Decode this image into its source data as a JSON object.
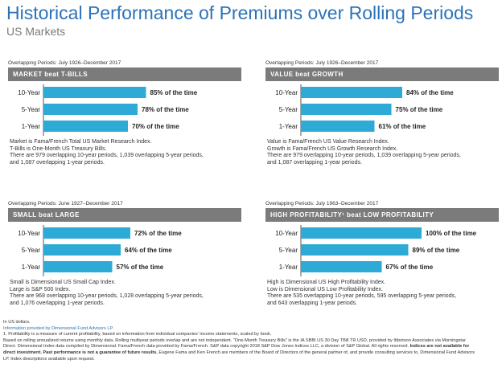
{
  "title": "Historical Performance of Premiums over Rolling Periods",
  "subtitle": "US Markets",
  "colors": {
    "bar": "#2eaad6",
    "header": "#7b7b7b",
    "title": "#2c73b8",
    "axis": "#555555"
  },
  "chart_data": [
    {
      "type": "bar",
      "orientation": "horizontal",
      "title": "MARKET beat T-BILLS",
      "period": "Overlapping Periods: July 1926–December 2017",
      "categories": [
        "10-Year",
        "5-Year",
        "1-Year"
      ],
      "values": [
        85,
        78,
        70
      ],
      "value_labels": [
        "85% of the time",
        "78% of the time",
        "70% of the time"
      ],
      "xlim": [
        0,
        100
      ],
      "notes": [
        "Market is Fama/French Total US Market Research Index.",
        "T-Bills is One-Month US Treasury Bills.",
        "There are 979 overlapping 10-year periods, 1,039 overlapping 5-year periods,",
        "and 1,087 overlapping 1-year periods."
      ]
    },
    {
      "type": "bar",
      "orientation": "horizontal",
      "title": "VALUE beat GROWTH",
      "period": "Overlapping Periods: July 1926–December 2017",
      "categories": [
        "10-Year",
        "5-Year",
        "1-Year"
      ],
      "values": [
        84,
        75,
        61
      ],
      "value_labels": [
        "84% of the time",
        "75% of the time",
        "61% of the time"
      ],
      "xlim": [
        0,
        100
      ],
      "notes": [
        "Value is Fama/French US Value Research Index.",
        "Growth is Fama/French US Growth Research Index.",
        "There are 979 overlapping 10-year periods, 1,039 overlapping 5-year periods,",
        "and 1,087 overlapping 1-year periods."
      ]
    },
    {
      "type": "bar",
      "orientation": "horizontal",
      "title": "SMALL beat LARGE",
      "period": "Overlapping Periods: June 1927–December 2017",
      "categories": [
        "10-Year",
        "5-Year",
        "1-Year"
      ],
      "values": [
        72,
        64,
        57
      ],
      "value_labels": [
        "72% of the time",
        "64% of the time",
        "57% of the time"
      ],
      "xlim": [
        0,
        100
      ],
      "notes": [
        "Small is Dimensional US Small Cap Index.",
        "Large is S&P 500 Index.",
        "There are 968 overlapping 10-year periods, 1,028 overlapping 5-year periods,",
        "and 1,076 overlapping 1-year periods."
      ]
    },
    {
      "type": "bar",
      "orientation": "horizontal",
      "title": "HIGH PROFITABILITY¹ beat LOW PROFITABILITY",
      "period": "Overlapping Periods: July 1963–December 2017",
      "categories": [
        "10-Year",
        "5-Year",
        "1-Year"
      ],
      "values": [
        100,
        89,
        67
      ],
      "value_labels": [
        "100% of the time",
        "89% of the time",
        "67% of the time"
      ],
      "xlim": [
        0,
        100
      ],
      "notes": [
        "High is Dimensional US High Profitability Index.",
        "Low is Dimensional US Low Profitability Index.",
        "There are 535 overlapping 10-year periods, 595 overlapping 5-year periods,",
        "and 643 overlapping 1-year periods."
      ]
    }
  ],
  "footer": {
    "line1": "In US dollars.",
    "line2": "Information provided by Dimensional Fund Advisors LP.",
    "line3": "1. Profitability is a measure of current profitability, based on information from individual companies' income statements, scaled by book.",
    "line4": "Based on rolling annualized returns using monthly data. Rolling multiyear periods overlap and are not independent. \"One-Month Treasury Bills\" is the IA SBBI US 30 Day TBill TR USD, provided by Ibbotson Associates via Morningstar",
    "line5a": "Direct. Dimensional Index data compiled by Dimensional. Fama/French data provided by Fama/French. S&P data copyright 2018 S&P Dow Jones Indices LLC, a division of S&P Global. All rights reserved.",
    "line5b": "Indices are not available for",
    "line6a": "direct investment. Past performance is not a guarantee of future results.",
    "line6b": "Eugene Fama and Ken French are members of the Board of Directors of the general partner of, and provide consulting services to, Dimensional Fund Advisors",
    "line7": "LP. Index descriptions available upon request."
  }
}
